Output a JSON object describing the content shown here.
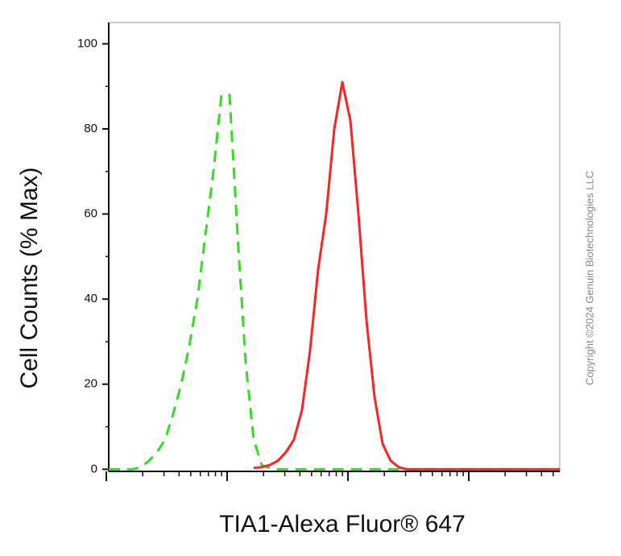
{
  "chart_data": {
    "type": "line",
    "x_label": "TIA1-Alexa Fluor® 647",
    "y_label": "Cell Counts (% Max)",
    "watermark": "Copyright ©2024 Genuin Biotechnologies LLC",
    "categories": [
      null,
      null,
      null,
      null,
      null,
      null,
      null,
      null,
      null,
      null,
      null,
      null,
      null,
      null,
      null,
      null,
      null,
      null,
      null,
      null,
      null,
      null,
      null,
      null,
      null,
      null,
      null,
      null,
      null,
      null,
      null,
      null,
      null,
      null,
      null,
      null,
      null,
      null,
      null,
      null,
      null,
      null,
      null,
      null,
      null,
      null,
      null,
      null,
      null,
      null,
      null,
      null,
      null,
      null,
      null,
      null,
      null
    ],
    "series": [
      {
        "color": "#33dd22",
        "dashed": true,
        "values": [
          0,
          0,
          0,
          0,
          0.5,
          2,
          4,
          7,
          13,
          20,
          29,
          40,
          55,
          70,
          88,
          88,
          55,
          25,
          7,
          1,
          0.3,
          0,
          0,
          0,
          0,
          0,
          0,
          0,
          0,
          0,
          0,
          0,
          0,
          0,
          0,
          0,
          0,
          0,
          0,
          0,
          0,
          0,
          0,
          0,
          0,
          0,
          0,
          0,
          0,
          0,
          0,
          0,
          0,
          0,
          0,
          0,
          0
        ]
      },
      {
        "color": "#ff2222",
        "dashed": false,
        "values": [
          null,
          null,
          null,
          null,
          null,
          null,
          null,
          null,
          null,
          null,
          null,
          null,
          null,
          null,
          null,
          null,
          null,
          null,
          0.3,
          0.5,
          1,
          2,
          4,
          7,
          14,
          28,
          47,
          60,
          80,
          91,
          82,
          60,
          35,
          17,
          6,
          2,
          0.5,
          0,
          0,
          0,
          0,
          0,
          0,
          0,
          0,
          0,
          0,
          0,
          0,
          0,
          0,
          0,
          0,
          0,
          0,
          0,
          0
        ]
      }
    ],
    "ylim": [
      -0.5,
      105
    ],
    "yticks": [
      0,
      20,
      40,
      60,
      80,
      100
    ],
    "yminorticks": [
      10,
      30,
      50,
      70,
      90
    ],
    "xscale": "log"
  }
}
